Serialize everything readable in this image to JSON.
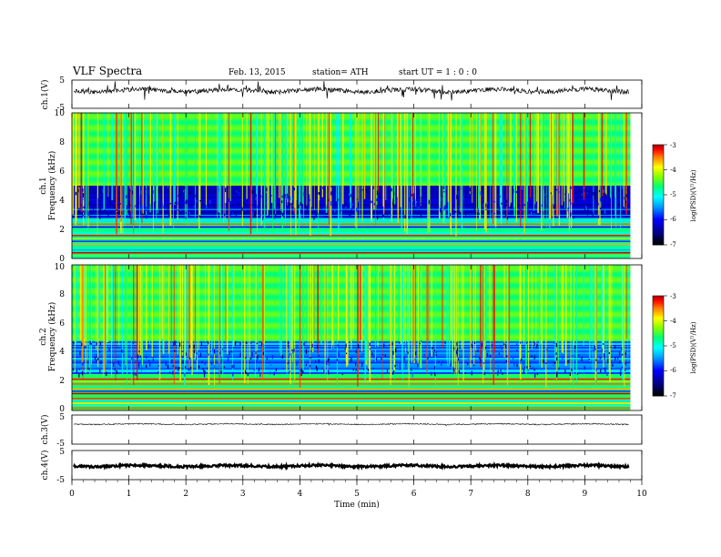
{
  "header": {
    "title": "VLF  Spectra",
    "date": "Feb. 13, 2015",
    "station": "station= ATH",
    "start": "start  UT  =   1  : 0  : 0"
  },
  "colors": {
    "scale": [
      "#000000",
      "#00008b",
      "#0000ff",
      "#0080ff",
      "#00ffff",
      "#00ff80",
      "#80ff00",
      "#ffff00",
      "#ff8000",
      "#ff0000",
      "#c00000",
      "#ffffff"
    ]
  },
  "chart_data": [
    {
      "type": "line",
      "panel": "ch1-waveform",
      "ylabel": "ch.1(V)",
      "ylim": [
        -5,
        5
      ],
      "yticks": [
        "5",
        "-5"
      ],
      "xlim": [
        0,
        10
      ],
      "description_level": 0.2
    },
    {
      "type": "heatmap",
      "panel": "ch1-spectrogram",
      "ylabel_channel": "ch.1",
      "ylabel": "Frequency  (kHz)",
      "ylim": [
        0,
        10
      ],
      "yticks": [
        "0",
        "2",
        "4",
        "6",
        "8",
        "10"
      ],
      "xlim": [
        0,
        10
      ],
      "data_end_min": 9.8,
      "colorbar": {
        "label": "log(PSD)(V²/Hz)",
        "range": [
          -7,
          -3
        ],
        "ticks": [
          "-3",
          "-4",
          "-5",
          "-6",
          "-7"
        ]
      }
    },
    {
      "type": "heatmap",
      "panel": "ch2-spectrogram",
      "ylabel_channel": "ch.2",
      "ylabel": "Frequency  (kHz)",
      "ylim": [
        0,
        10
      ],
      "yticks": [
        "0",
        "2",
        "4",
        "6",
        "8",
        "10"
      ],
      "xlim": [
        0,
        10
      ],
      "data_end_min": 9.8,
      "colorbar": {
        "label": "log(PSD)(V²/Hz)",
        "range": [
          -7,
          -3
        ],
        "ticks": [
          "-3",
          "-4",
          "-5",
          "-6",
          "-7"
        ]
      }
    },
    {
      "type": "line",
      "panel": "ch3-waveform",
      "ylabel": "ch.3(V)",
      "ylim": [
        -5,
        5
      ],
      "yticks": [
        "5",
        "-5"
      ],
      "xlim": [
        0,
        10
      ]
    },
    {
      "type": "line",
      "panel": "ch4-waveform",
      "ylabel": "ch.4(V)",
      "ylim": [
        -5,
        5
      ],
      "yticks": [
        "5",
        "-5"
      ],
      "xlim": [
        0,
        10
      ]
    }
  ],
  "xaxis": {
    "label": "Time  (min)",
    "ticks": [
      "0",
      "1",
      "2",
      "3",
      "4",
      "5",
      "6",
      "7",
      "8",
      "9",
      "10"
    ]
  }
}
